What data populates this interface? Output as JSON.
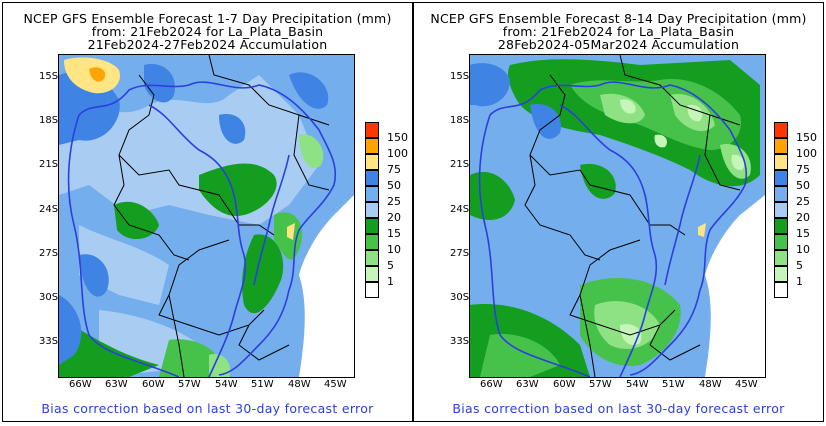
{
  "colors": {
    "c0": "#ffffff",
    "c1": "#c5f5b8",
    "c5": "#8ee283",
    "c10": "#46c24a",
    "c15": "#149e20",
    "c20": "#a9cdf2",
    "c25": "#74aeec",
    "c50": "#3f83e4",
    "c75": "#ffe584",
    "c100": "#ffa400",
    "c150": "#ff3600",
    "border": "#000000",
    "river": "#2b3fe0"
  },
  "legend": {
    "labels": [
      "150",
      "100",
      "75",
      "50",
      "25",
      "20",
      "15",
      "10",
      "5",
      "1"
    ],
    "colors": [
      "#ff3600",
      "#ffa400",
      "#ffe584",
      "#3f83e4",
      "#74aeec",
      "#a9cdf2",
      "#149e20",
      "#46c24a",
      "#8ee283",
      "#c5f5b8"
    ],
    "bottom_color": "#ffffff"
  },
  "axes": {
    "lat_labels": [
      "15S",
      "18S",
      "21S",
      "24S",
      "27S",
      "30S",
      "33S"
    ],
    "lon_labels": [
      "66W",
      "63W",
      "60W",
      "57W",
      "54W",
      "51W",
      "48W",
      "45W"
    ]
  },
  "panels": [
    {
      "title_line1": "NCEP GFS Ensemble Forecast 1-7 Day Precipitation (mm)",
      "title_line2": "from: 21Feb2024   for La_Plata_Basin",
      "title_line3": "21Feb2024-27Feb2024 Accumulation",
      "footer": "Bias correction based on last 30-day forecast error"
    },
    {
      "title_line1": "NCEP GFS Ensemble Forecast 8-14 Day Precipitation (mm)",
      "title_line2": "from: 21Feb2024   for La_Plata_Basin",
      "title_line3": "28Feb2024-05Mar2024 Accumulation",
      "footer": "Bias correction based on last 30-day forecast error"
    }
  ]
}
